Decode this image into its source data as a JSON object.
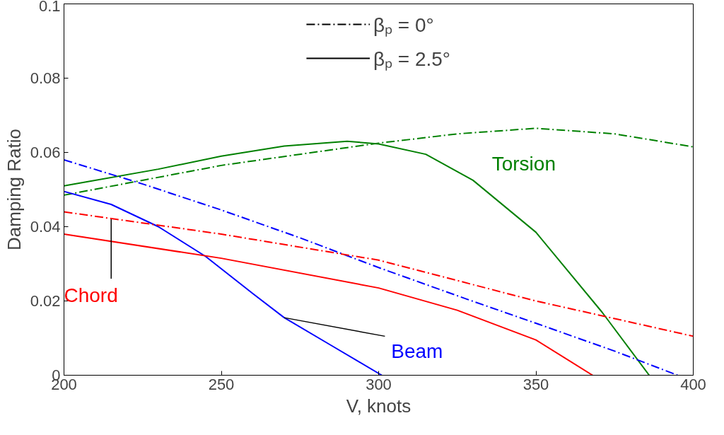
{
  "chart_data": {
    "type": "line",
    "xlabel": "V, knots",
    "ylabel": "Damping Ratio",
    "xlim": [
      200,
      400
    ],
    "ylim": [
      0,
      0.1
    ],
    "xticks": [
      200,
      250,
      300,
      350,
      400
    ],
    "yticks": [
      0,
      {
        "value": 0.02,
        "label": "0.02"
      },
      {
        "value": 0.04,
        "label": "0.04"
      },
      {
        "value": 0.06,
        "label": "0.06"
      },
      {
        "value": 0.08,
        "label": "0.08"
      },
      {
        "value": 0.1,
        "label": "0.1"
      }
    ],
    "grid": false,
    "legend": "top",
    "series": [
      {
        "name": "βₚ = 0°",
        "color": "#000000",
        "line_style": "dashdot"
      },
      {
        "name": "βₚ = 2.5°",
        "color": "#000000",
        "line_style": "solid"
      },
      {
        "color": "#008000",
        "line_style": "dashdot",
        "x": [
          200,
          250,
          300,
          325,
          350,
          375,
          400
        ],
        "values": [
          0.0485,
          0.0565,
          0.0625,
          0.065,
          0.0665,
          0.065,
          0.0615
        ]
      },
      {
        "color": "#008000",
        "line_style": "solid",
        "x": [
          200,
          230,
          250,
          270,
          290,
          300,
          315,
          330,
          350,
          371,
          386
        ],
        "values": [
          0.051,
          0.0555,
          0.059,
          0.0617,
          0.063,
          0.0623,
          0.0595,
          0.0525,
          0.0385,
          0.017,
          0
        ]
      },
      {
        "color": "#0000ff",
        "line_style": "dashdot",
        "x": [
          200,
          225,
          250,
          275,
          300,
          328,
          350,
          375,
          395
        ],
        "values": [
          0.058,
          0.0515,
          0.0445,
          0.037,
          0.029,
          0.0205,
          0.014,
          0.0065,
          0
        ]
      },
      {
        "color": "#0000ff",
        "line_style": "solid",
        "x": [
          200,
          215,
          230,
          245,
          260,
          270,
          285,
          301
        ],
        "values": [
          0.0495,
          0.046,
          0.04,
          0.032,
          0.022,
          0.0155,
          0.008,
          0
        ]
      },
      {
        "color": "#ff0000",
        "line_style": "dashdot",
        "x": [
          200,
          250,
          300,
          350,
          400
        ],
        "values": [
          0.044,
          0.038,
          0.031,
          0.02,
          0.0105
        ]
      },
      {
        "color": "#ff0000",
        "line_style": "solid",
        "x": [
          200,
          250,
          300,
          325,
          350,
          368
        ],
        "values": [
          0.038,
          0.0315,
          0.0235,
          0.0175,
          0.0095,
          0
        ]
      }
    ],
    "annotations": [
      {
        "text": "Torsion",
        "x": 350,
        "y": 0.0665
      },
      {
        "text": "Beam",
        "x": 270,
        "y": 0.0155
      },
      {
        "text": "Chord",
        "x": 215,
        "y": 0.042
      }
    ]
  }
}
